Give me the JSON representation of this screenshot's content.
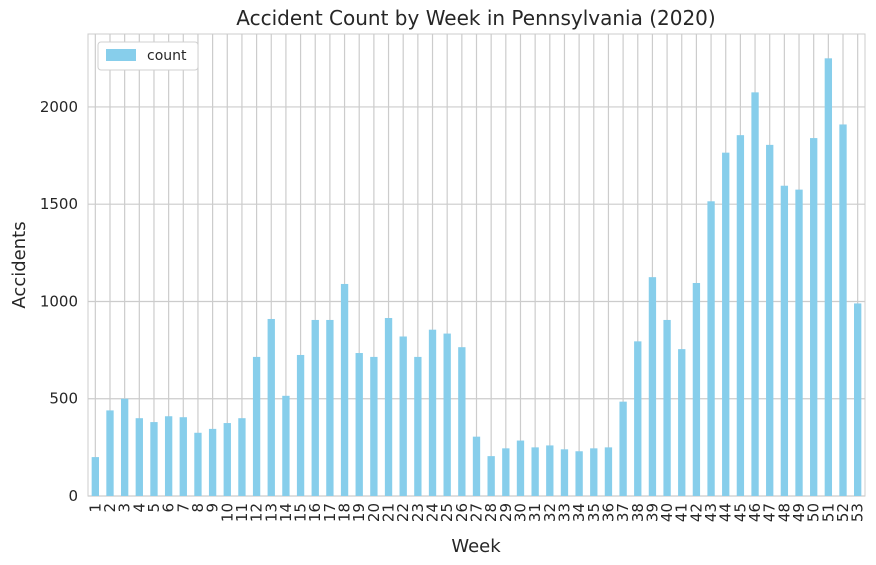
{
  "chart_data": {
    "type": "bar",
    "title": "Accident Count by Week in Pennsylvania (2020)",
    "xlabel": "Week",
    "ylabel": "Accidents",
    "categories": [
      "1",
      "2",
      "3",
      "4",
      "5",
      "6",
      "7",
      "8",
      "9",
      "10",
      "11",
      "12",
      "13",
      "14",
      "15",
      "16",
      "17",
      "18",
      "19",
      "20",
      "21",
      "22",
      "23",
      "24",
      "25",
      "26",
      "27",
      "28",
      "29",
      "30",
      "31",
      "32",
      "33",
      "34",
      "35",
      "36",
      "37",
      "38",
      "39",
      "40",
      "41",
      "42",
      "43",
      "44",
      "45",
      "46",
      "47",
      "48",
      "49",
      "50",
      "51",
      "52",
      "53"
    ],
    "series": [
      {
        "name": "count",
        "color": "#87ceeb",
        "values": [
          200,
          440,
          500,
          400,
          380,
          410,
          405,
          325,
          345,
          375,
          400,
          715,
          910,
          515,
          725,
          905,
          905,
          1090,
          735,
          715,
          915,
          820,
          715,
          855,
          835,
          765,
          305,
          205,
          245,
          285,
          250,
          260,
          240,
          230,
          245,
          250,
          485,
          795,
          1125,
          905,
          755,
          1095,
          1515,
          1765,
          1855,
          2075,
          1805,
          1595,
          1575,
          1840,
          2250,
          1910,
          990
        ]
      }
    ],
    "ylim": [
      0,
      2375
    ],
    "yticks": [
      0,
      500,
      1000,
      1500,
      2000
    ],
    "grid": true,
    "legend": "top-left"
  }
}
